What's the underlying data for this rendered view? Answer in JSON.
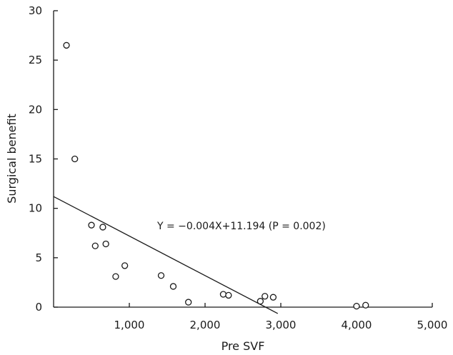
{
  "chart_data": {
    "type": "scatter",
    "title": "",
    "xlabel": "Pre SVF",
    "ylabel": "Surgical benefit",
    "xlim": [
      0,
      5000
    ],
    "ylim": [
      0,
      30
    ],
    "x_ticks": [
      1000,
      2000,
      3000,
      4000,
      5000
    ],
    "x_tick_labels": [
      "1,000",
      "2,000",
      "3,000",
      "4,000",
      "5,000"
    ],
    "y_ticks": [
      0,
      5,
      10,
      15,
      20,
      25,
      30
    ],
    "y_tick_labels": [
      "0",
      "5",
      "10",
      "15",
      "20",
      "25",
      "30"
    ],
    "grid": false,
    "points": [
      {
        "x": 170,
        "y": 26.5
      },
      {
        "x": 280,
        "y": 15.0
      },
      {
        "x": 500,
        "y": 8.3
      },
      {
        "x": 550,
        "y": 6.2
      },
      {
        "x": 650,
        "y": 8.1
      },
      {
        "x": 690,
        "y": 6.4
      },
      {
        "x": 820,
        "y": 3.1
      },
      {
        "x": 940,
        "y": 4.2
      },
      {
        "x": 1420,
        "y": 3.2
      },
      {
        "x": 1580,
        "y": 2.1
      },
      {
        "x": 1780,
        "y": 0.5
      },
      {
        "x": 2240,
        "y": 1.3
      },
      {
        "x": 2310,
        "y": 1.2
      },
      {
        "x": 2730,
        "y": 0.6
      },
      {
        "x": 2790,
        "y": 1.1
      },
      {
        "x": 2900,
        "y": 1.0
      },
      {
        "x": 4000,
        "y": 0.1
      },
      {
        "x": 4120,
        "y": 0.2
      }
    ],
    "fit_line": {
      "slope": -0.004,
      "intercept": 11.194,
      "x_start": 0,
      "x_end": 2960
    },
    "annotation": "Y = −0.004X+11.194 (P = 0.002)"
  }
}
